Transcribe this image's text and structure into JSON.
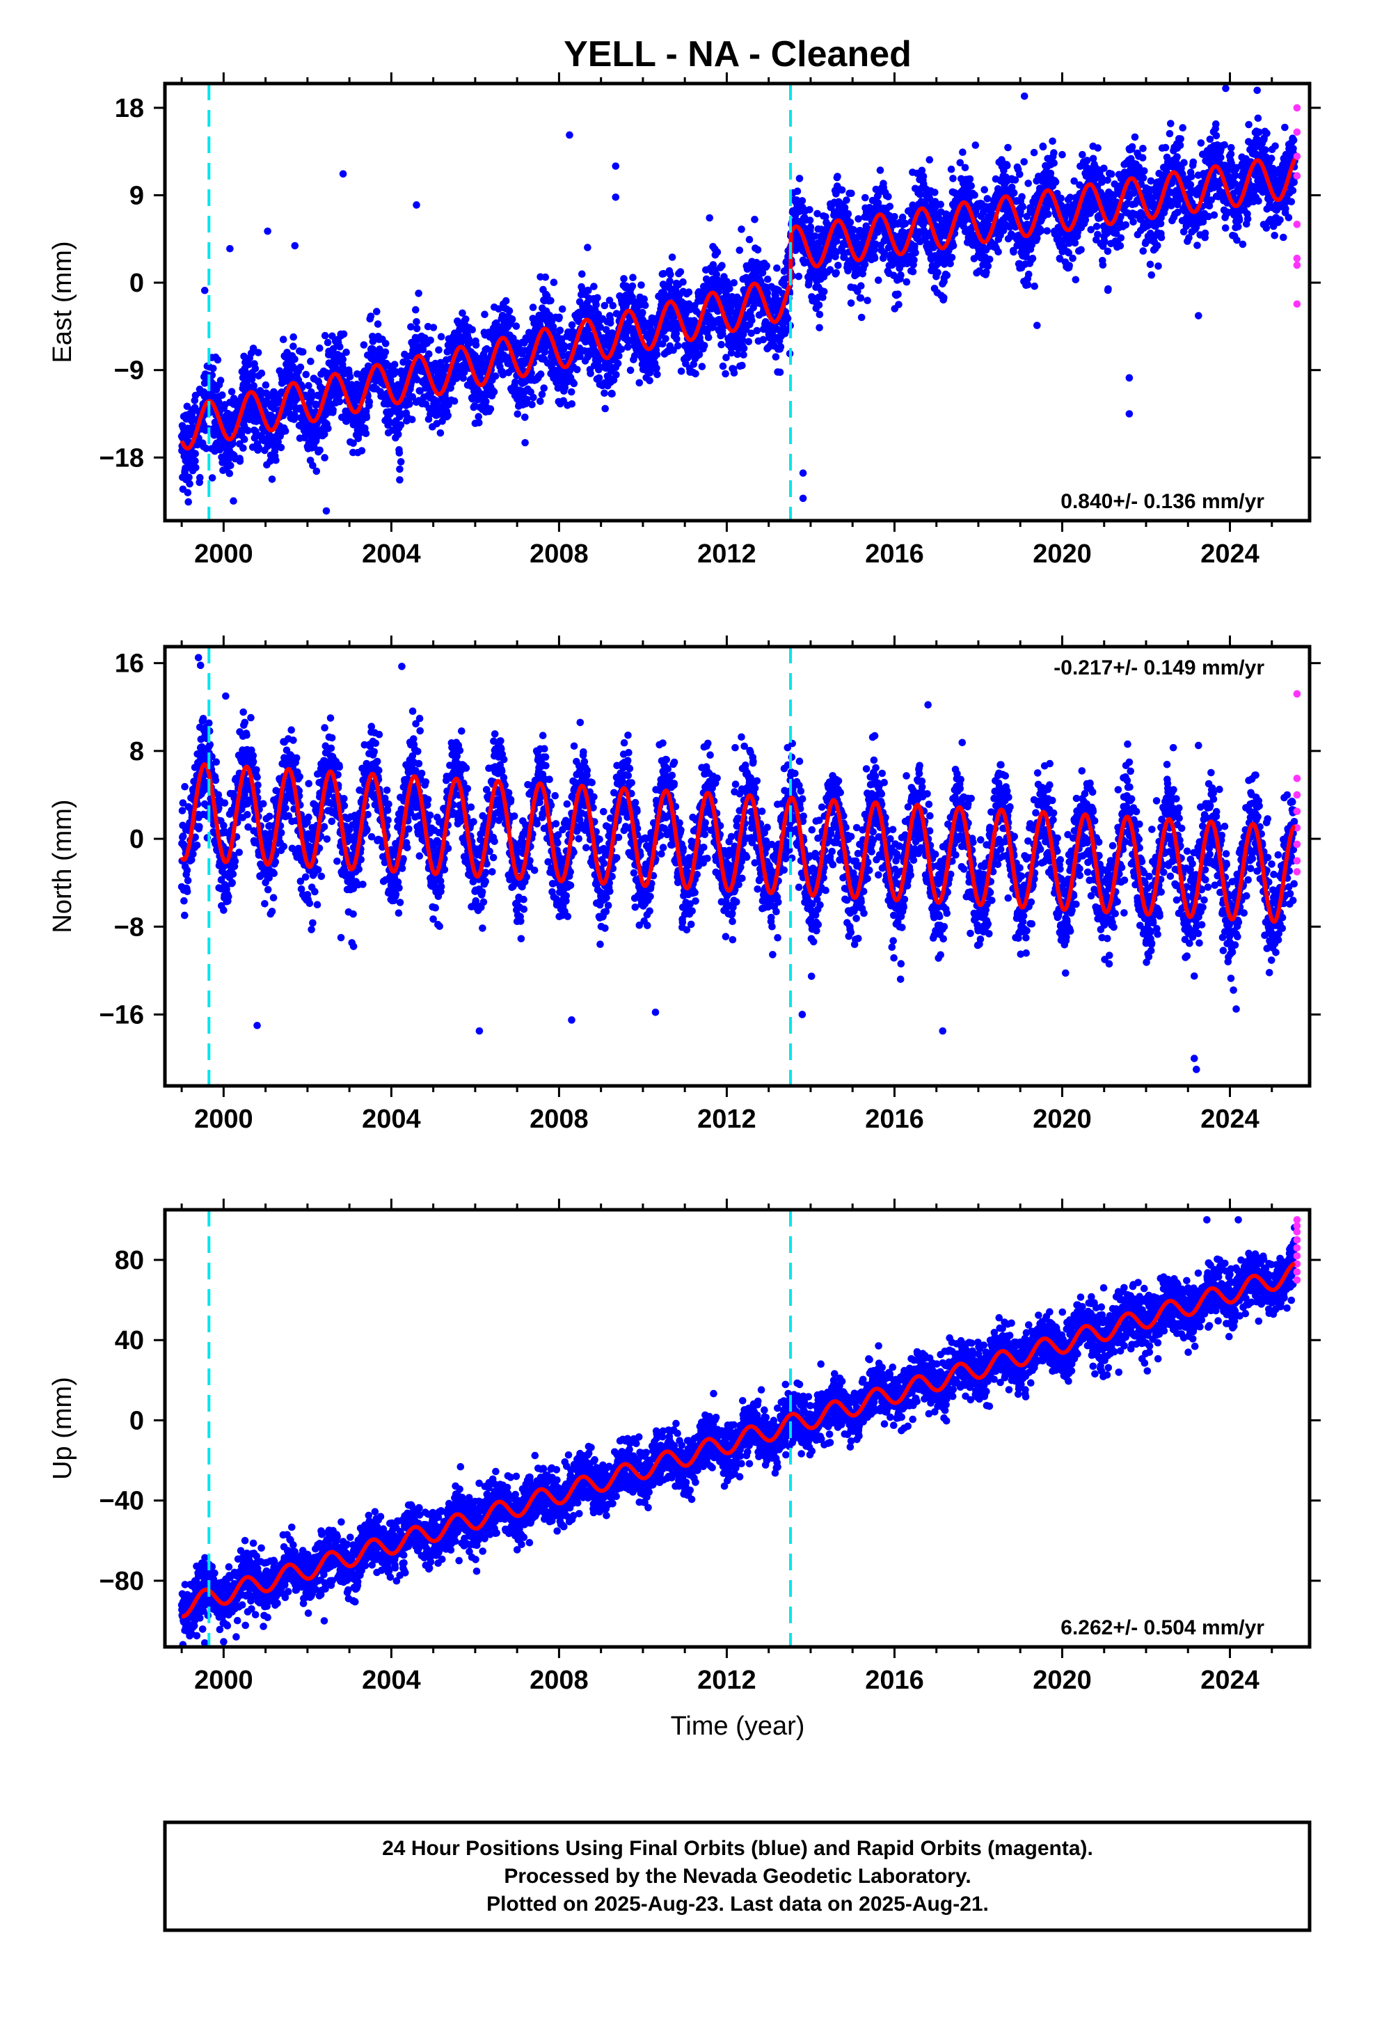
{
  "title": "YELL  - NA - Cleaned",
  "xlabel": "Time (year)",
  "footer": {
    "line1": "24 Hour Positions Using Final Orbits (blue) and Rapid Orbits (magenta).",
    "line2": "Processed by the Nevada Geodetic Laboratory.",
    "line3": "Plotted on 2025-Aug-23. Last data on 2025-Aug-21."
  },
  "colors": {
    "final_orbits": "#0000ff",
    "rapid_orbits": "#ff33ff",
    "model_fit": "#ff0000",
    "equipment_change": "#00e5ee",
    "frame": "#000000"
  },
  "chart_data": [
    {
      "type": "scatter",
      "component": "east",
      "ylabel": "East (mm)",
      "xlim": [
        1998.6,
        2025.9
      ],
      "ylim": [
        -24.5,
        20.5
      ],
      "yticks": [
        -18,
        -9,
        0,
        9,
        18
      ],
      "xticks": [
        2000,
        2004,
        2008,
        2012,
        2016,
        2020,
        2024
      ],
      "rate_text": "0.840+/- 0.136 mm/yr",
      "rate_position": "bottom-right",
      "data_start": 1999.0,
      "data_end": 2025.55,
      "offset_lines_x": [
        1999.65,
        2013.52
      ],
      "model": {
        "series": "red fit",
        "segments": [
          {
            "from": 1999.0,
            "to": 2013.52,
            "value_at_start": -15.0,
            "rate": 0.93
          },
          {
            "from": 2013.52,
            "to": 2025.55,
            "value_at_start": 3.5,
            "rate": 0.62
          }
        ],
        "seasonal_amplitude": 2.2,
        "seasonal_phase_peak": 0.65
      },
      "scatter_spread": 2.2,
      "rapid_points": {
        "x": 2025.6,
        "y": [
          18,
          15.5,
          13,
          11,
          6,
          2.5,
          1.8,
          -2.2
        ]
      },
      "outliers": [
        {
          "x": 2002.85,
          "y": 11.2
        },
        {
          "x": 2008.25,
          "y": 15.2
        },
        {
          "x": 2009.35,
          "y": 12.0
        },
        {
          "x": 2009.35,
          "y": 8.8
        },
        {
          "x": 2001.05,
          "y": 5.3
        },
        {
          "x": 2001.7,
          "y": 3.8
        },
        {
          "x": 2004.6,
          "y": 8.0
        },
        {
          "x": 2004.2,
          "y": -19.2
        },
        {
          "x": 2004.2,
          "y": -20.3
        },
        {
          "x": 2002.45,
          "y": -23.5
        },
        {
          "x": 2013.82,
          "y": -19.6
        },
        {
          "x": 2013.82,
          "y": -22.2
        },
        {
          "x": 2023.25,
          "y": -3.4
        },
        {
          "x": 2021.6,
          "y": -13.5
        },
        {
          "x": 2021.6,
          "y": -9.8
        },
        {
          "x": 2019.4,
          "y": -4.4
        },
        {
          "x": 2019.1,
          "y": 19.2
        },
        {
          "x": 2024.65,
          "y": 19.8
        },
        {
          "x": 2023.9,
          "y": 20.0
        },
        {
          "x": 2012.35,
          "y": 5.5
        },
        {
          "x": 2000.15,
          "y": 3.5
        },
        {
          "x": 1999.55,
          "y": -0.8
        }
      ]
    },
    {
      "type": "scatter",
      "component": "north",
      "ylabel": "North (mm)",
      "xlim": [
        1998.6,
        2025.9
      ],
      "ylim": [
        -22.5,
        17.5
      ],
      "yticks": [
        -16,
        -8,
        0,
        8,
        16
      ],
      "xticks": [
        2000,
        2004,
        2008,
        2012,
        2016,
        2020,
        2024
      ],
      "rate_text": "-0.217+/- 0.149 mm/yr",
      "rate_position": "top-right",
      "data_start": 1999.0,
      "data_end": 2025.55,
      "offset_lines_x": [
        1999.65,
        2013.52
      ],
      "model": {
        "series": "red fit",
        "segments": [
          {
            "from": 1999.0,
            "to": 2025.55,
            "value_at_start": 2.5,
            "rate": -0.217
          }
        ],
        "seasonal_amplitude": 4.4,
        "seasonal_phase_peak": 0.55
      },
      "scatter_spread": 2.3,
      "rapid_points": {
        "x": 2025.6,
        "y": [
          13.2,
          5.5,
          4.0,
          2.5,
          1.0,
          -0.5,
          -2.0,
          -3.0
        ]
      },
      "outliers": [
        {
          "x": 1999.4,
          "y": 16.5
        },
        {
          "x": 1999.45,
          "y": 15.8
        },
        {
          "x": 2004.25,
          "y": 15.7
        },
        {
          "x": 2000.05,
          "y": 13.0
        },
        {
          "x": 2002.55,
          "y": 11.0
        },
        {
          "x": 2016.8,
          "y": 12.2
        },
        {
          "x": 2000.8,
          "y": -17.0
        },
        {
          "x": 2000.0,
          "y": -6.5
        },
        {
          "x": 2002.8,
          "y": -9.0
        },
        {
          "x": 2003.1,
          "y": -9.8
        },
        {
          "x": 2006.1,
          "y": -17.5
        },
        {
          "x": 2008.3,
          "y": -16.5
        },
        {
          "x": 2010.3,
          "y": -15.8
        },
        {
          "x": 2013.8,
          "y": -16.0
        },
        {
          "x": 2017.15,
          "y": -17.5
        },
        {
          "x": 2023.15,
          "y": -12.5
        },
        {
          "x": 2023.15,
          "y": -20.0
        },
        {
          "x": 2023.2,
          "y": -21.0
        },
        {
          "x": 2024.15,
          "y": -15.5
        },
        {
          "x": 2012.2,
          "y": 8.3
        },
        {
          "x": 2022.65,
          "y": 8.3
        },
        {
          "x": 2023.25,
          "y": 8.5
        }
      ]
    },
    {
      "type": "scatter",
      "component": "up",
      "ylabel": "Up (mm)",
      "xlim": [
        1998.6,
        2025.9
      ],
      "ylim": [
        -113,
        105
      ],
      "yticks": [
        -80,
        -40,
        0,
        40,
        80
      ],
      "xticks": [
        2000,
        2004,
        2008,
        2012,
        2016,
        2020,
        2024
      ],
      "rate_text": "6.262+/- 0.504 mm/yr",
      "rate_position": "bottom-right",
      "data_start": 1999.0,
      "data_end": 2025.55,
      "offset_lines_x": [
        1999.65,
        2013.52
      ],
      "model": {
        "series": "red fit",
        "segments": [
          {
            "from": 1999.0,
            "to": 2025.55,
            "value_at_start": -93.0,
            "rate": 6.262
          }
        ],
        "seasonal_amplitude": 5.0,
        "seasonal_phase_peak": 0.55
      },
      "scatter_spread": 7.0,
      "rapid_points": {
        "x": 2025.6,
        "y": [
          100,
          97,
          94,
          90,
          86,
          82,
          78,
          74,
          70
        ]
      },
      "outliers": [
        {
          "x": 1999.55,
          "y": -111
        },
        {
          "x": 2000.3,
          "y": -108
        },
        {
          "x": 2002.4,
          "y": -100
        },
        {
          "x": 2023.45,
          "y": 100
        },
        {
          "x": 2024.2,
          "y": 100
        }
      ]
    }
  ]
}
